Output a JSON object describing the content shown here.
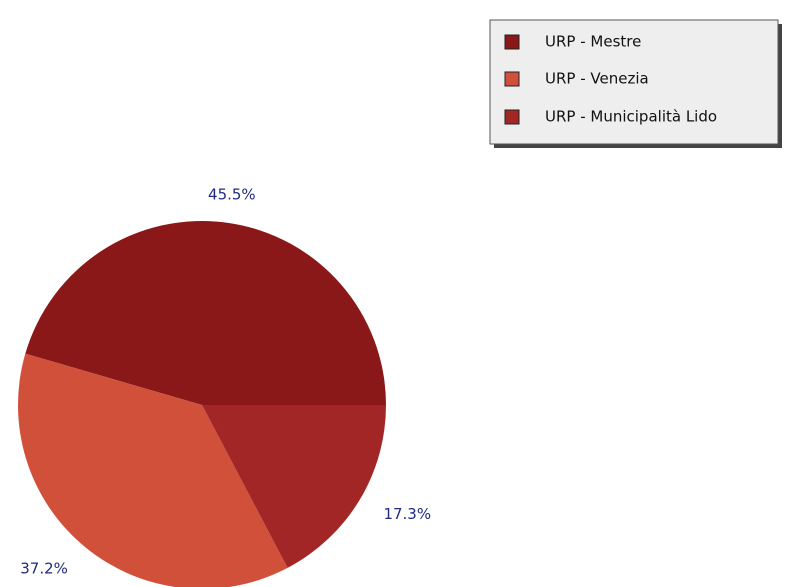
{
  "chart_data": {
    "type": "pie",
    "categories": [
      "URP - Mestre",
      "URP - Venezia",
      "URP - Municipalità Lido"
    ],
    "values": [
      45.5,
      37.2,
      17.3
    ],
    "value_labels": [
      "45.5%",
      "37.2%",
      "17.3%"
    ],
    "colors": [
      "#8a1818",
      "#d0503a",
      "#a32626"
    ],
    "legend": "top-right"
  }
}
